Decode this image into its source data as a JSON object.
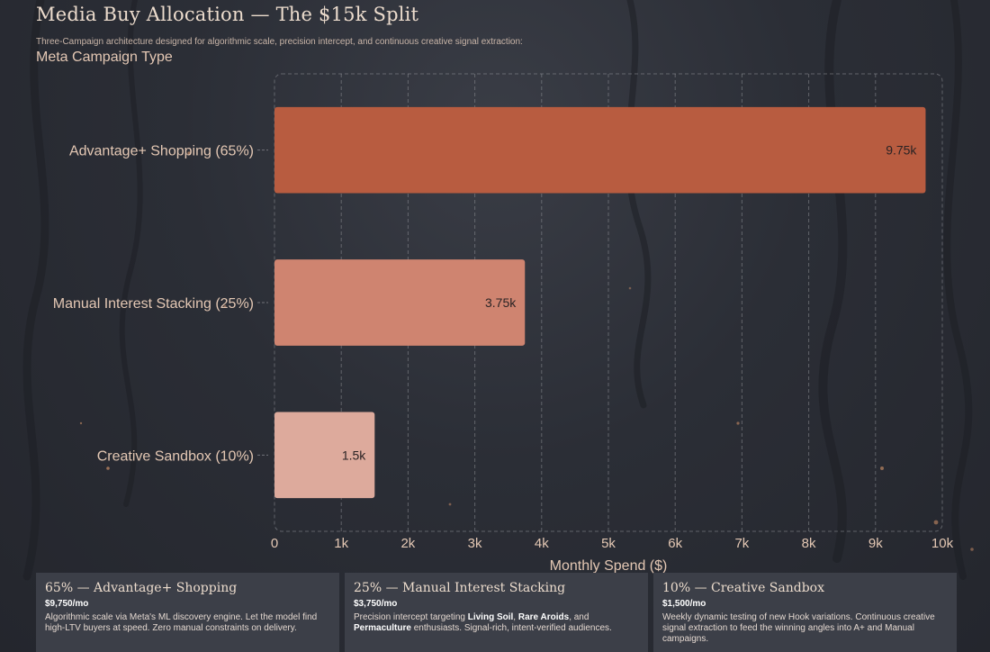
{
  "header": {
    "title": "Media Buy Allocation — The $15k Split",
    "subtitle": "Three-Campaign architecture designed for algorithmic scale, precision intercept, and continuous creative signal extraction:"
  },
  "chart_data": {
    "type": "bar",
    "orientation": "horizontal",
    "ylabel": "Meta Campaign Type",
    "xlabel": "Monthly Spend ($)",
    "categories": [
      "Advantage+ Shopping (65%)",
      "Manual Interest Stacking (25%)",
      "Creative Sandbox (10%)"
    ],
    "values": [
      9750,
      3750,
      1500
    ],
    "data_labels": [
      "9.75k",
      "3.75k",
      "1.5k"
    ],
    "colors": [
      "#b85c40",
      "#cf8470",
      "#ddaa9c"
    ],
    "xlim": [
      0,
      10000
    ],
    "x_ticks": [
      0,
      1000,
      2000,
      3000,
      4000,
      5000,
      6000,
      7000,
      8000,
      9000,
      10000
    ],
    "x_tick_labels": [
      "0",
      "1k",
      "2k",
      "3k",
      "4k",
      "5k",
      "6k",
      "7k",
      "8k",
      "9k",
      "10k"
    ],
    "grid": true
  },
  "cards": [
    {
      "title": "65% — Advantage+ Shopping",
      "amount": "$9,750/mo",
      "desc": "Algorithmic scale via Meta's ML discovery engine. Let the model find high-LTV buyers at speed. Zero manual constraints on delivery."
    },
    {
      "title": "25% — Manual Interest Stacking",
      "amount": "$3,750/mo",
      "desc_parts": [
        {
          "text": "Precision intercept targeting ",
          "bold": false
        },
        {
          "text": "Living Soil",
          "bold": true
        },
        {
          "text": ", ",
          "bold": false
        },
        {
          "text": "Rare Aroids",
          "bold": true
        },
        {
          "text": ", and ",
          "bold": false
        },
        {
          "text": "Permaculture",
          "bold": true
        },
        {
          "text": " enthusiasts. Signal-rich, intent-verified audiences.",
          "bold": false
        }
      ]
    },
    {
      "title": "10% — Creative Sandbox",
      "amount": "$1,500/mo",
      "desc": "Weekly dynamic testing of new Hook variations. Continuous creative signal extraction to feed the winning angles into A+ and Manual campaigns."
    }
  ]
}
